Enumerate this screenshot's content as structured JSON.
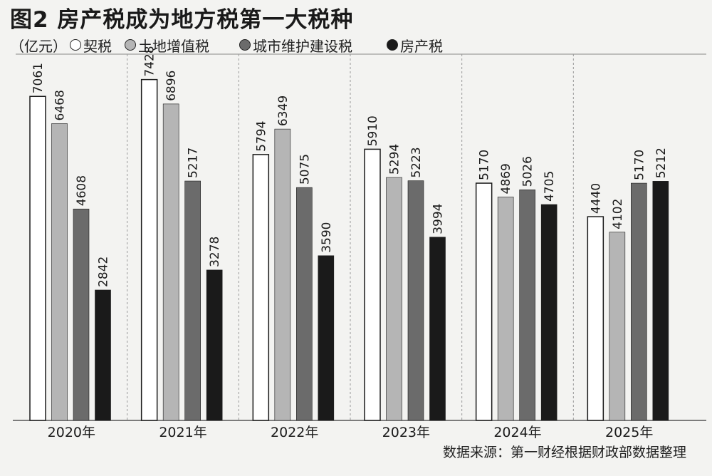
{
  "title": "图2 房产税成为地方税第一大税种",
  "legend": {
    "unit": "（亿元）",
    "items": [
      {
        "label": "契税",
        "color": "#ffffff"
      },
      {
        "label": "土地增值税",
        "color": "#b5b5b5"
      },
      {
        "label": "城市维护建设税",
        "color": "#6b6b6b"
      },
      {
        "label": "房产税",
        "color": "#1a1a1a"
      }
    ]
  },
  "source": "数据来源：第一财经根据财政部数据整理",
  "chart_data": {
    "type": "bar",
    "categories": [
      "2020年",
      "2021年",
      "2022年",
      "2023年",
      "2024年",
      "2025年"
    ],
    "ylim": [
      0,
      7500
    ],
    "grid": false,
    "legend_position": "top-left",
    "series": [
      {
        "name": "契税",
        "color": "#ffffff",
        "values": [
          7061,
          7428,
          5794,
          5910,
          5170,
          4440
        ]
      },
      {
        "name": "土地增值税",
        "color": "#b5b5b5",
        "values": [
          6468,
          6896,
          6349,
          5294,
          4869,
          4102
        ]
      },
      {
        "name": "城市维护建设税",
        "color": "#6b6b6b",
        "values": [
          4608,
          5217,
          5075,
          5223,
          5026,
          5170
        ]
      },
      {
        "name": "房产税",
        "color": "#1a1a1a",
        "values": [
          2842,
          3278,
          3590,
          3994,
          4705,
          5212
        ]
      }
    ]
  }
}
